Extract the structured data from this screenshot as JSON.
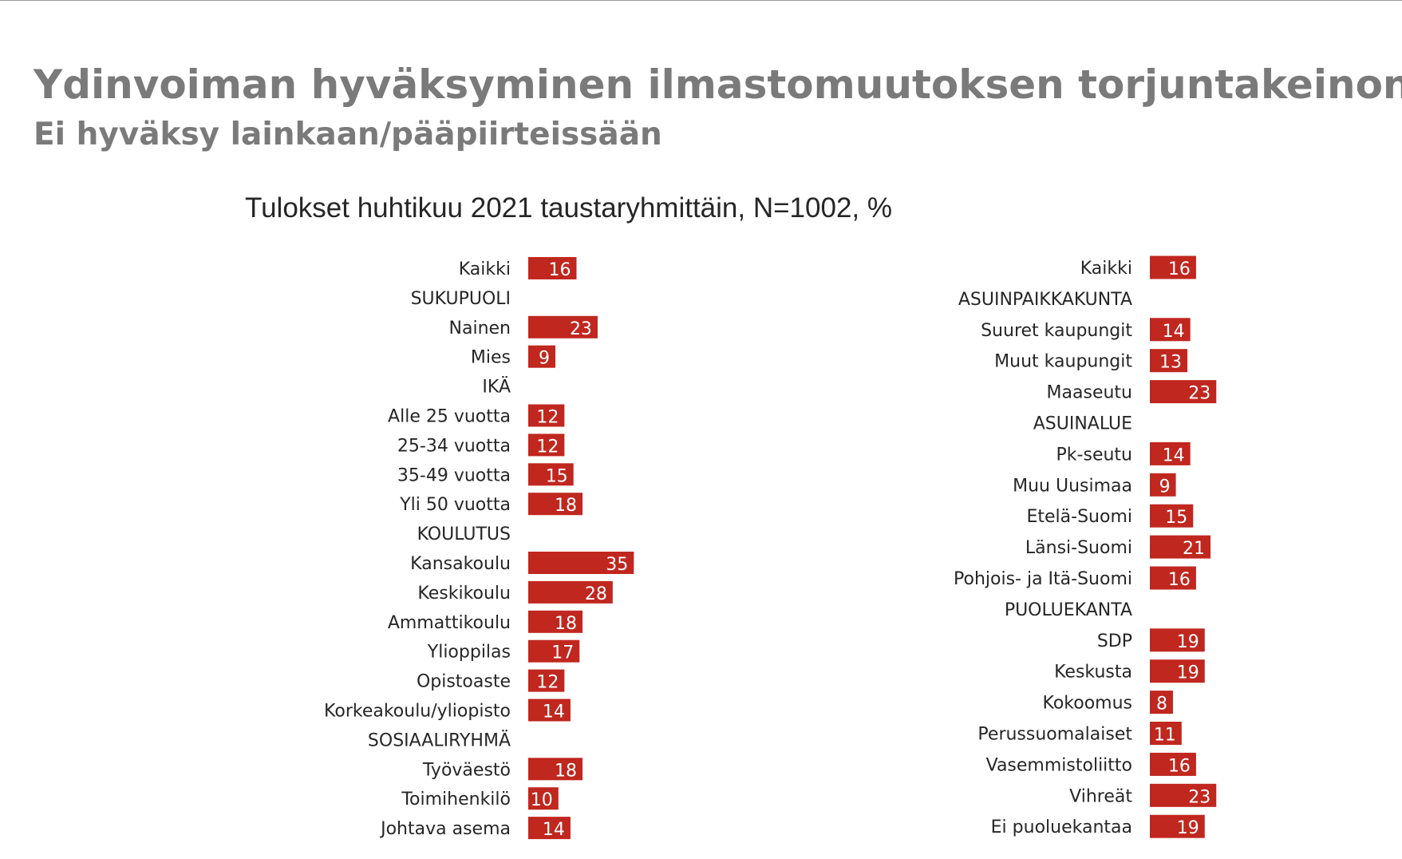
{
  "title": "Ydinvoiman hyväksyminen ilmastomuutoksen torjuntakeinona",
  "subtitle": "Ei hyväksy lainkaan/pääpiirteissään",
  "colors": {
    "bar": "#c0271f",
    "title": "#7a7a7a",
    "text": "#262626"
  },
  "chart_data": {
    "type": "bar",
    "orientation": "horizontal",
    "title": "Tulokset huhtikuu 2021 taustaryhmittäin, N=1002, %",
    "xlabel": "",
    "ylabel": "",
    "grid": false,
    "panels": [
      {
        "name": "left",
        "rows": [
          {
            "label": "Kaikki",
            "value": 16
          },
          {
            "label": "SUKUPUOLI",
            "value": null
          },
          {
            "label": "Nainen",
            "value": 23
          },
          {
            "label": "Mies",
            "value": 9
          },
          {
            "label": "IKÄ",
            "value": null
          },
          {
            "label": "Alle 25 vuotta",
            "value": 12
          },
          {
            "label": "25-34 vuotta",
            "value": 12
          },
          {
            "label": "35-49 vuotta",
            "value": 15
          },
          {
            "label": "Yli 50 vuotta",
            "value": 18
          },
          {
            "label": "KOULUTUS",
            "value": null
          },
          {
            "label": "Kansakoulu",
            "value": 35
          },
          {
            "label": "Keskikoulu",
            "value": 28
          },
          {
            "label": "Ammattikoulu",
            "value": 18
          },
          {
            "label": "Ylioppilas",
            "value": 17
          },
          {
            "label": "Opistoaste",
            "value": 12
          },
          {
            "label": "Korkeakoulu/yliopisto",
            "value": 14
          },
          {
            "label": "SOSIAALIRYHMÄ",
            "value": null
          },
          {
            "label": "Työväestö",
            "value": 18
          },
          {
            "label": "Toimihenkilö",
            "value": 10
          },
          {
            "label": "Johtava asema",
            "value": 14
          }
        ]
      },
      {
        "name": "right",
        "rows": [
          {
            "label": "Kaikki",
            "value": 16
          },
          {
            "label": "ASUINPAIKKAKUNTA",
            "value": null
          },
          {
            "label": "Suuret kaupungit",
            "value": 14
          },
          {
            "label": "Muut kaupungit",
            "value": 13
          },
          {
            "label": "Maaseutu",
            "value": 23
          },
          {
            "label": "ASUINALUE",
            "value": null
          },
          {
            "label": "Pk-seutu",
            "value": 14
          },
          {
            "label": "Muu Uusimaa",
            "value": 9
          },
          {
            "label": "Etelä-Suomi",
            "value": 15
          },
          {
            "label": "Länsi-Suomi",
            "value": 21
          },
          {
            "label": "Pohjois- ja Itä-Suomi",
            "value": 16
          },
          {
            "label": "PUOLUEKANTA",
            "value": null
          },
          {
            "label": "SDP",
            "value": 19
          },
          {
            "label": "Keskusta",
            "value": 19
          },
          {
            "label": "Kokoomus",
            "value": 8
          },
          {
            "label": "Perussuomalaiset",
            "value": 11
          },
          {
            "label": "Vasemmistoliitto",
            "value": 16
          },
          {
            "label": "Vihreät",
            "value": 23
          },
          {
            "label": "Ei puoluekantaa",
            "value": 19
          }
        ]
      }
    ]
  }
}
